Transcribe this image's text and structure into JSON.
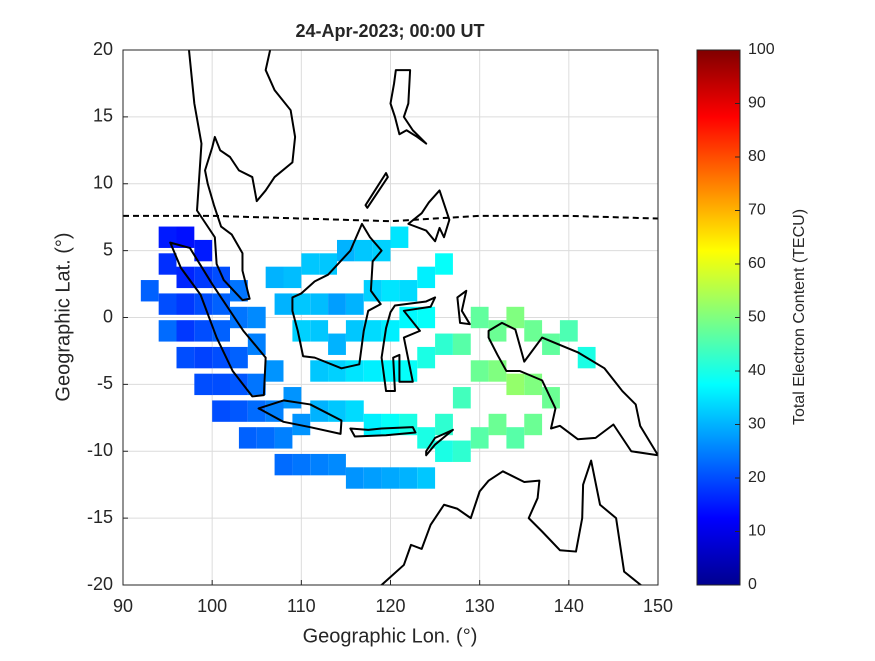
{
  "chart_data": {
    "type": "heatmap",
    "title": "24-Apr-2023; 00:00 UT",
    "x_label": "Geographic Lon. (°)",
    "y_label": "Geographic Lat. (°)",
    "xlim": [
      90,
      150
    ],
    "xticks": [
      90,
      100,
      110,
      120,
      130,
      140,
      150
    ],
    "ylim": [
      -20,
      20
    ],
    "yticks": [
      -20,
      -15,
      -10,
      -5,
      0,
      5,
      10,
      15,
      20
    ],
    "grid": true,
    "colormap": "jet",
    "colorbar": {
      "label": "Total Electron Content (TECU)",
      "lim": [
        0,
        100
      ],
      "ticks": [
        0,
        10,
        20,
        30,
        40,
        50,
        60,
        70,
        80,
        90,
        100
      ]
    },
    "x": [
      95,
      97,
      99,
      95,
      97,
      99,
      101,
      93,
      95,
      97,
      99,
      101,
      103,
      95,
      97,
      99,
      101,
      103,
      105,
      97,
      99,
      101,
      103,
      105,
      99,
      101,
      103,
      105,
      107,
      101,
      103,
      105,
      107,
      109,
      104,
      106,
      108,
      110,
      108,
      110,
      112,
      114,
      116,
      118,
      120,
      122,
      124,
      107,
      109,
      111,
      113,
      115,
      117,
      119,
      121,
      108,
      110,
      112,
      114,
      116,
      118,
      120,
      122,
      124,
      126,
      110,
      112,
      114,
      116,
      118,
      120,
      122,
      124,
      112,
      114,
      116,
      118,
      120,
      122,
      124,
      126,
      112,
      114,
      116,
      118,
      120,
      122,
      124,
      126,
      128,
      128,
      130,
      132,
      134,
      136,
      138,
      140,
      142,
      130,
      132,
      134,
      136,
      138,
      130,
      132,
      128,
      126,
      134,
      136
    ],
    "y": [
      6,
      6,
      5,
      4,
      3,
      3,
      3,
      2,
      1,
      1,
      1,
      1,
      2,
      -1,
      -1,
      -1,
      -1,
      0,
      0,
      -3,
      -3,
      -3,
      -3,
      -2,
      -5,
      -5,
      -5,
      -5,
      -4,
      -7,
      -7,
      -7,
      -7,
      -6,
      -9,
      -9,
      -9,
      -8,
      -11,
      -11,
      -11,
      -11,
      -12,
      -12,
      -12,
      -12,
      -12,
      3,
      3,
      4,
      4,
      5,
      5,
      5,
      6,
      1,
      1,
      1,
      1,
      1,
      2,
      2,
      2,
      3,
      4,
      -1,
      -1,
      -2,
      -1,
      -1,
      -1,
      0,
      0,
      -4,
      -4,
      -4,
      -4,
      -4,
      -4,
      -3,
      -2,
      -7,
      -7,
      -7,
      -8,
      -8,
      -8,
      -9,
      -8,
      -6,
      -2,
      0,
      -1,
      0,
      -1,
      -2,
      -1,
      -3,
      -4,
      -4,
      -5,
      -5,
      -6,
      -9,
      -8,
      -10,
      -10,
      -9,
      -8
    ],
    "values": [
      15,
      14,
      15,
      17,
      16,
      18,
      20,
      22,
      20,
      18,
      20,
      22,
      24,
      23,
      18,
      20,
      22,
      24,
      26,
      20,
      19,
      20,
      22,
      25,
      20,
      20,
      21,
      24,
      27,
      20,
      21,
      23,
      25,
      27,
      22,
      23,
      25,
      27,
      23,
      24,
      25,
      26,
      27,
      28,
      29,
      30,
      32,
      30,
      31,
      32,
      32,
      30,
      32,
      33,
      35,
      30,
      32,
      31,
      28,
      30,
      33,
      35,
      34,
      36,
      38,
      33,
      32,
      30,
      32,
      34,
      36,
      37,
      38,
      32,
      33,
      35,
      36,
      37,
      38,
      40,
      42,
      30,
      32,
      34,
      36,
      38,
      40,
      40,
      42,
      44,
      46,
      47,
      48,
      50,
      48,
      47,
      45,
      40,
      48,
      50,
      52,
      50,
      48,
      46,
      48,
      42,
      40,
      46,
      48
    ]
  }
}
